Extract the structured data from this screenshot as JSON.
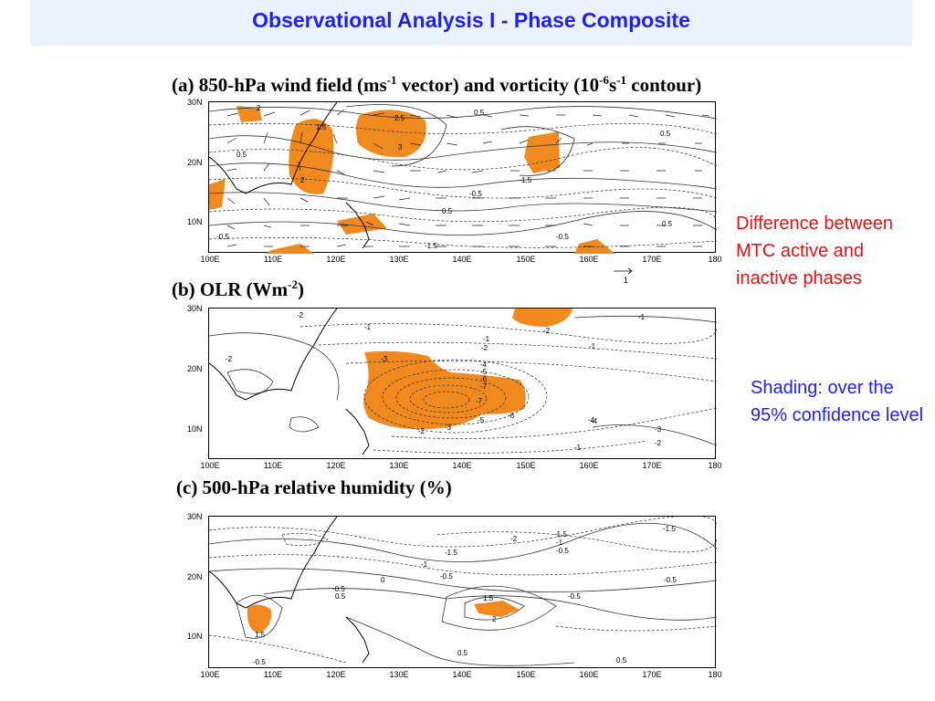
{
  "header": {
    "title": "Observational Analysis I - Phase Composite"
  },
  "panels": [
    {
      "caption_main": "(a) 850-hPa wind field (ms",
      "sup1": "-1",
      "mid1": " vector) and vorticity (10",
      "sup2": "-6",
      "mid2": "s",
      "sup3": "-1",
      "end": " contour)"
    },
    {
      "caption_main": "(b) OLR (Wm",
      "sup1": "-2",
      "end": ")"
    },
    {
      "caption_main": "(c) 500-hPa relative humidity (%)"
    }
  ],
  "axes": {
    "lat_labels": [
      "30N",
      "20N",
      "10N"
    ],
    "lon_labels": [
      "100E",
      "110E",
      "120E",
      "130E",
      "140E",
      "150E",
      "160E",
      "170E",
      "180"
    ]
  },
  "vector_ref_label": "1",
  "notes": {
    "red": "Difference between MTC active and inactive phases",
    "blue": "Shading: over the 95% confidence level"
  },
  "colors": {
    "title": "#1f1ff0",
    "red_note": "#e81010",
    "shading": "#f08a1e"
  },
  "contour_labels": {
    "a": [
      "2",
      "1.5",
      "0.5",
      "2.5",
      "3",
      "1.5",
      "0.5",
      "-0.5",
      "0.5",
      "-0.5",
      "0.5",
      "0.5",
      "-1.5",
      "2",
      "-0.5"
    ],
    "b": [
      "-2",
      "-1",
      "-1",
      "-2",
      "-3",
      "-4",
      "-5",
      "-6",
      "-7",
      "-7",
      "-5",
      "-3",
      "-2",
      "-6",
      "-4",
      "-2",
      "-1",
      "-3",
      "-2",
      "-1",
      "-1",
      "-4",
      "-2"
    ],
    "c": [
      "-1.5",
      "-2",
      "-1.5",
      "-1",
      "-0.5",
      "-1",
      "0",
      "-0.5",
      "-0.5",
      "0.5",
      "-0.5",
      "-1.5",
      "1.5",
      "2",
      "-0.5",
      "0.5",
      "1.5",
      "-0.5",
      "0.5"
    ]
  }
}
